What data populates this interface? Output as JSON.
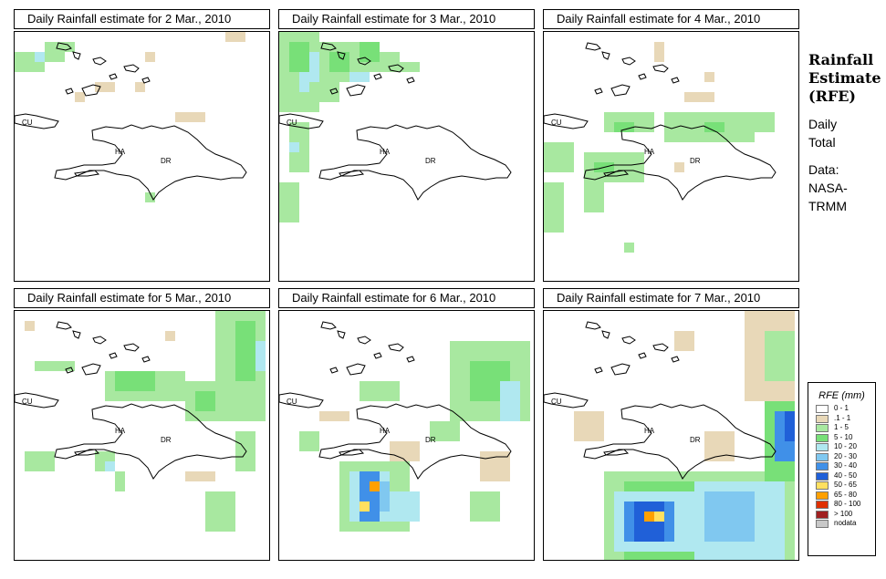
{
  "panels": [
    {
      "title": "Daily Rainfall estimate for  2 Mar., 2010"
    },
    {
      "title": "Daily Rainfall estimate for  3 Mar., 2010"
    },
    {
      "title": "Daily Rainfall estimate for  4 Mar., 2010"
    },
    {
      "title": "Daily Rainfall estimate for  5 Mar., 2010"
    },
    {
      "title": "Daily Rainfall estimate for  6 Mar., 2010"
    },
    {
      "title": "Daily Rainfall estimate for  7 Mar., 2010"
    }
  ],
  "map_labels": {
    "cuba": "CU",
    "haiti": "HA",
    "dominican_republic": "DR"
  },
  "side": {
    "title_line1": "Rainfall",
    "title_line2": "Estimate",
    "title_line3": "(RFE)",
    "subtitle_line1": "Daily",
    "subtitle_line2": "Total",
    "source_line1": "Data:",
    "source_line2": "NASA-",
    "source_line3": "TRMM"
  },
  "legend": {
    "title": "RFE (mm)",
    "items": [
      {
        "label": "0 - 1",
        "color": "#ffffff"
      },
      {
        "label": ".1 - 1",
        "color": "#e8d8b8"
      },
      {
        "label": "1 - 5",
        "color": "#a8e8a0"
      },
      {
        "label": "5 - 10",
        "color": "#78e078"
      },
      {
        "label": "10 - 20",
        "color": "#b0e8f0"
      },
      {
        "label": "20 - 30",
        "color": "#80c8f0"
      },
      {
        "label": "30 - 40",
        "color": "#4090e8"
      },
      {
        "label": "40 - 50",
        "color": "#2060d8"
      },
      {
        "label": "50 - 65",
        "color": "#ffe060"
      },
      {
        "label": "65 - 80",
        "color": "#ffa000"
      },
      {
        "label": "80 - 100",
        "color": "#e03000"
      },
      {
        "label": "> 100",
        "color": "#a02020"
      },
      {
        "label": "nodata",
        "color": "#c8c8c8"
      }
    ]
  }
}
